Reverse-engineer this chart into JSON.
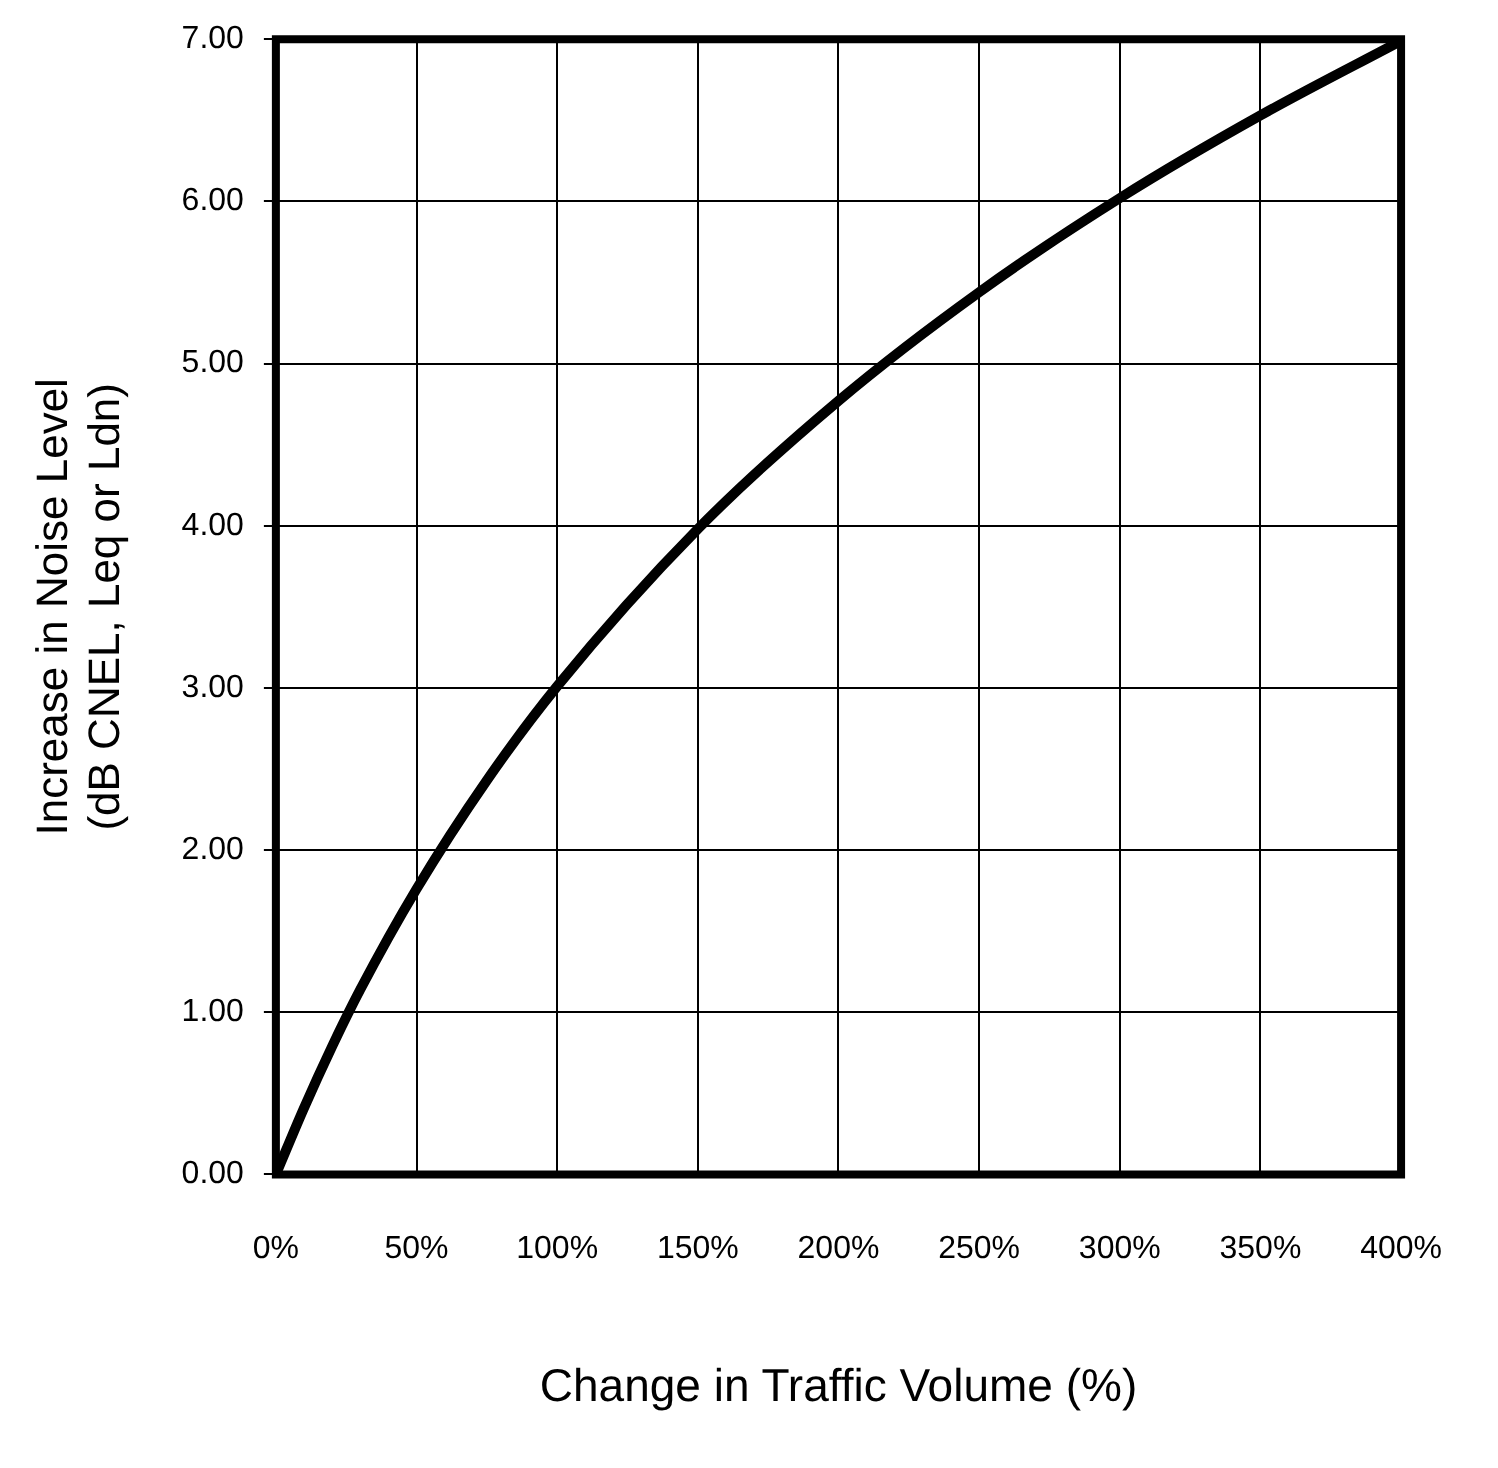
{
  "chart_data": {
    "type": "line",
    "xlabel": "Change in Traffic Volume (%)",
    "ylabel": "Increase in Noise Level\n(dB CNEL, Leq or Ldn)",
    "x": [
      0,
      10,
      20,
      30,
      50,
      75,
      100,
      150,
      200,
      250,
      300,
      350,
      400
    ],
    "series": [
      {
        "color": "#000000",
        "values": [
          0,
          0.41,
          0.79,
          1.14,
          1.76,
          2.43,
          3.01,
          3.98,
          4.77,
          5.44,
          6.02,
          6.53,
          6.99
        ]
      }
    ],
    "xlim": [
      0,
      400
    ],
    "ylim": [
      0,
      7
    ],
    "xticks": [
      {
        "value": 0,
        "label": "0%"
      },
      {
        "value": 50,
        "label": "50%"
      },
      {
        "value": 100,
        "label": "100%"
      },
      {
        "value": 150,
        "label": "150%"
      },
      {
        "value": 200,
        "label": "200%"
      },
      {
        "value": 250,
        "label": "250%"
      },
      {
        "value": 300,
        "label": "300%"
      },
      {
        "value": 350,
        "label": "350%"
      },
      {
        "value": 400,
        "label": "400%"
      }
    ],
    "yticks": [
      {
        "value": 0,
        "label": "0.00"
      },
      {
        "value": 1,
        "label": "1.00"
      },
      {
        "value": 2,
        "label": "2.00"
      },
      {
        "value": 3,
        "label": "3.00"
      },
      {
        "value": 4,
        "label": "4.00"
      },
      {
        "value": 5,
        "label": "5.00"
      },
      {
        "value": 6,
        "label": "6.00"
      },
      {
        "value": 7,
        "label": "7.00"
      }
    ],
    "grid": true,
    "legend": false,
    "marker": "none",
    "line_style": "solid"
  }
}
